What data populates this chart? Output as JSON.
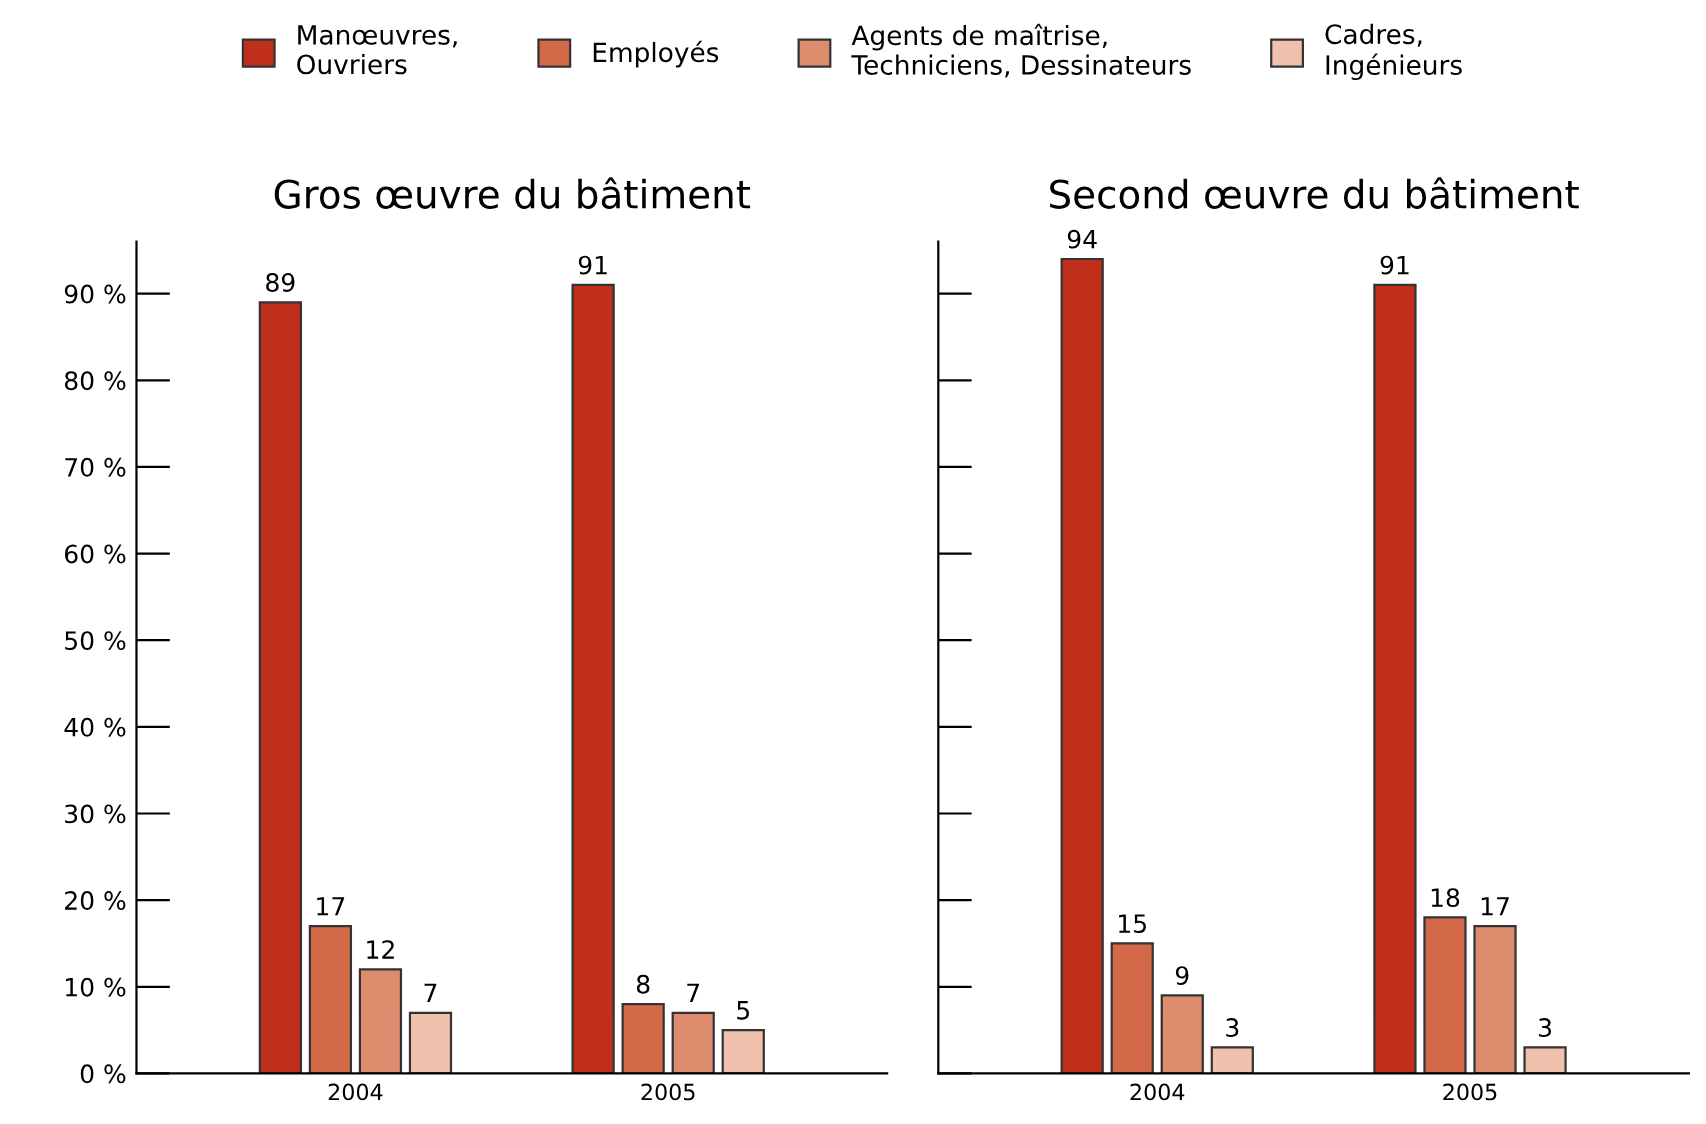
{
  "chart_data": [
    {
      "type": "bar",
      "title": "Gros œuvre du bâtiment",
      "categories": [
        "2004",
        "2005"
      ],
      "legend": "top",
      "data_labels": true,
      "ylim": [
        0,
        96
      ],
      "yticks": [
        {
          "value": 0,
          "label": "0 %"
        },
        {
          "value": 10,
          "label": "10 %"
        },
        {
          "value": 20,
          "label": "20 %"
        },
        {
          "value": 30,
          "label": "30 %"
        },
        {
          "value": 40,
          "label": "40 %"
        },
        {
          "value": 50,
          "label": "50 %"
        },
        {
          "value": 60,
          "label": "60 %"
        },
        {
          "value": 70,
          "label": "70 %"
        },
        {
          "value": 80,
          "label": "80 %"
        },
        {
          "value": 90,
          "label": "90 %"
        }
      ],
      "series": [
        {
          "name": "Manœuvres,\nOuvriers",
          "color": "#bf2f1c",
          "values": [
            89,
            91
          ]
        },
        {
          "name": "Employés",
          "color": "#d4694a",
          "values": [
            17,
            8
          ]
        },
        {
          "name": "Agents de maîtrise,\nTechniciens, Dessinateurs",
          "color": "#de8c6e",
          "values": [
            12,
            7
          ]
        },
        {
          "name": "Cadres,\nIngénieurs",
          "color": "#f0c2ae",
          "values": [
            7,
            5
          ]
        }
      ]
    },
    {
      "type": "bar",
      "title": "Second œuvre du bâtiment",
      "categories": [
        "2004",
        "2005"
      ],
      "data_labels": true,
      "ylim": [
        0,
        96
      ],
      "tick_labels": "x",
      "yticks": [
        0,
        10,
        20,
        30,
        40,
        50,
        60,
        70,
        80,
        90
      ],
      "series": [
        {
          "color": "#bf2f1c",
          "values": [
            94,
            91
          ]
        },
        {
          "color": "#d4694a",
          "values": [
            15,
            18
          ]
        },
        {
          "color": "#de8c6e",
          "values": [
            9,
            17
          ]
        },
        {
          "color": "#f0c2ae",
          "values": [
            3,
            3
          ]
        }
      ]
    }
  ]
}
